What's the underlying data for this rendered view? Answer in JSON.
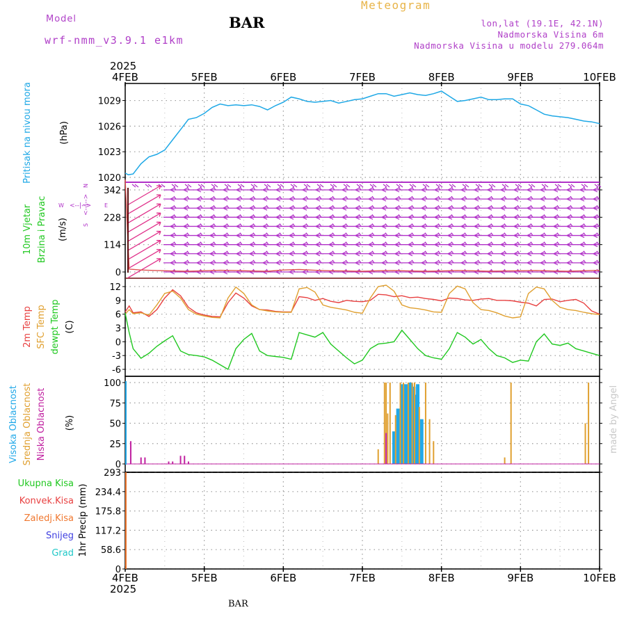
{
  "header": {
    "model_label": "Model",
    "model_name": "wrf-nmm_v3.9.1 e1km",
    "station": "BAR",
    "title": "Meteogram",
    "coords": "lon,lat (19.1E, 42.1N)",
    "elevation": "Nadmorska Visina 6m",
    "model_elevation": "Nadmorska Visina u modelu 279.064m"
  },
  "footer": {
    "station": "BAR",
    "credit": "made by Angel"
  },
  "time_axis": {
    "year": "2025",
    "labels": [
      "4FEB",
      "5FEB",
      "6FEB",
      "7FEB",
      "8FEB",
      "9FEB",
      "10FEB"
    ]
  },
  "colors": {
    "pressure": "#1ea8e6",
    "wind": "#b030c8",
    "wind_speed": "#e05050",
    "wind_arrow": "#e0308a",
    "temp2m": "#e84040",
    "sfc_temp": "#e0a030",
    "dewpt": "#20c820",
    "cloud_high": "#20a8e8",
    "cloud_mid": "#e0a030",
    "cloud_low": "#c020a0",
    "precip_total": "#20c820",
    "precip_conv": "#e84040",
    "precip_frz": "#f07830",
    "precip_snow": "#4040e0",
    "precip_hail": "#20c8c8"
  },
  "chart_data": [
    {
      "type": "line",
      "panel": "pressure",
      "ylabel_left": "Pritisak na nivou mora",
      "ylabel_unit": "(hPa)",
      "ylim": [
        1020,
        1031
      ],
      "yticks": [
        1020,
        1023,
        1026,
        1029
      ],
      "grid": true,
      "x_days": [
        0,
        0.04,
        0.1,
        0.2,
        0.3,
        0.4,
        0.5,
        0.6,
        0.7,
        0.8,
        0.9,
        1.0,
        1.1,
        1.2,
        1.3,
        1.4,
        1.5,
        1.6,
        1.7,
        1.8,
        1.9,
        2.0,
        2.1,
        2.2,
        2.3,
        2.4,
        2.5,
        2.6,
        2.7,
        2.8,
        2.9,
        3.0,
        3.1,
        3.2,
        3.3,
        3.4,
        3.5,
        3.6,
        3.7,
        3.8,
        3.9,
        4.0,
        4.1,
        4.2,
        4.3,
        4.4,
        4.5,
        4.6,
        4.7,
        4.8,
        4.9,
        5.0,
        5.1,
        5.2,
        5.3,
        5.4,
        5.5,
        5.6,
        5.7,
        5.8,
        5.9,
        6.0
      ],
      "series": [
        {
          "values": [
            1020.5,
            1020.3,
            1020.4,
            1021.6,
            1022.4,
            1022.7,
            1023.2,
            1024.4,
            1025.6,
            1026.8,
            1027.0,
            1027.5,
            1028.2,
            1028.6,
            1028.4,
            1028.5,
            1028.4,
            1028.5,
            1028.3,
            1027.9,
            1028.4,
            1028.8,
            1029.4,
            1029.2,
            1028.9,
            1028.8,
            1028.9,
            1029.0,
            1028.7,
            1028.9,
            1029.1,
            1029.2,
            1029.5,
            1029.8,
            1029.8,
            1029.5,
            1029.7,
            1029.9,
            1029.7,
            1029.6,
            1029.8,
            1030.1,
            1029.5,
            1028.9,
            1029.0,
            1029.2,
            1029.4,
            1029.1,
            1029.1,
            1029.2,
            1029.2,
            1028.6,
            1028.4,
            1027.9,
            1027.4,
            1027.2,
            1027.1,
            1027.0,
            1026.8,
            1026.6,
            1026.5,
            1026.3
          ]
        }
      ]
    },
    {
      "type": "line",
      "panel": "wind",
      "ylabel_left": "10m Vjetar",
      "ylabel_left2": "Brzina i Pravac",
      "ylabel_unit": "(m/s)",
      "compass_labels": [
        "W",
        "<--|-->",
        "E",
        "N",
        "<--|-->",
        "S"
      ],
      "yticks": [
        0,
        114,
        228,
        342
      ],
      "ylim": [
        -19,
        400
      ],
      "grid": true,
      "x_days": [
        0,
        0.05,
        0.2,
        0.4,
        0.6,
        0.8,
        1.0,
        1.2,
        1.4,
        1.6,
        1.8,
        2.0,
        2.2,
        2.4,
        2.6,
        2.8,
        3.0,
        3.2,
        3.4,
        3.6,
        3.8,
        4.0,
        4.2,
        4.4,
        4.6,
        4.8,
        5.0,
        5.2,
        5.4,
        5.6,
        5.8,
        6.0
      ],
      "series": [
        {
          "name": "speed",
          "values": [
            385,
            12,
            8,
            6,
            4,
            3,
            5,
            7,
            6,
            4,
            3,
            8,
            10,
            7,
            5,
            4,
            3,
            5,
            6,
            4,
            3,
            4,
            6,
            5,
            3,
            4,
            5,
            6,
            4,
            3,
            5,
            7
          ]
        }
      ],
      "barb_levels": [
        342,
        304,
        266,
        228,
        190,
        152,
        114,
        76,
        38,
        0
      ],
      "arrow_levels": [
        38,
        76,
        114,
        152,
        190,
        228,
        266,
        304,
        342
      ]
    },
    {
      "type": "line",
      "panel": "temperature",
      "ylabel_left": [
        "2m Temp",
        "SFC Temp",
        "dewpt Temp"
      ],
      "ylabel_unit": "(C)",
      "ylim": [
        -7,
        13
      ],
      "yticks": [
        -6,
        -3,
        0,
        3,
        6,
        9,
        12
      ],
      "grid": true,
      "x_days": [
        0,
        0.05,
        0.1,
        0.2,
        0.3,
        0.4,
        0.5,
        0.6,
        0.7,
        0.8,
        0.9,
        1.0,
        1.1,
        1.2,
        1.3,
        1.4,
        1.5,
        1.6,
        1.7,
        1.8,
        1.9,
        2.0,
        2.1,
        2.2,
        2.3,
        2.4,
        2.5,
        2.6,
        2.7,
        2.8,
        2.9,
        3.0,
        3.1,
        3.2,
        3.3,
        3.4,
        3.5,
        3.6,
        3.7,
        3.8,
        3.9,
        4.0,
        4.1,
        4.2,
        4.3,
        4.4,
        4.5,
        4.6,
        4.7,
        4.8,
        4.9,
        5.0,
        5.1,
        5.2,
        5.3,
        5.4,
        5.5,
        5.6,
        5.7,
        5.8,
        5.9,
        6.0
      ],
      "series": [
        {
          "name": "2m Temp",
          "values": [
            6.5,
            7.8,
            6.3,
            6.5,
            5.5,
            7.0,
            9.5,
            11.3,
            10.0,
            7.5,
            6.3,
            5.8,
            5.5,
            5.4,
            8.5,
            10.6,
            9.5,
            7.8,
            7.0,
            6.9,
            6.6,
            6.5,
            6.5,
            9.8,
            9.6,
            9.0,
            9.4,
            8.8,
            8.5,
            9.0,
            8.8,
            8.7,
            9.0,
            10.3,
            10.2,
            9.8,
            10.0,
            9.6,
            9.7,
            9.4,
            9.2,
            8.9,
            9.5,
            9.4,
            9.1,
            9.0,
            9.3,
            9.4,
            9.0,
            9.0,
            8.9,
            8.6,
            8.4,
            7.8,
            9.2,
            9.3,
            8.7,
            9.0,
            9.2,
            8.4,
            6.7,
            6.0
          ]
        },
        {
          "name": "SFC Temp",
          "values": [
            6.0,
            7.0,
            6.1,
            6.3,
            5.8,
            8.0,
            10.5,
            11.0,
            9.5,
            7.0,
            6.0,
            5.6,
            5.3,
            5.2,
            9.5,
            11.9,
            10.5,
            8.0,
            7.0,
            6.7,
            6.5,
            6.4,
            6.4,
            11.5,
            11.8,
            10.8,
            8.0,
            7.5,
            7.2,
            6.9,
            6.4,
            6.2,
            9.5,
            12.0,
            12.3,
            11.0,
            8.0,
            7.4,
            7.2,
            6.9,
            6.5,
            6.4,
            10.5,
            12.1,
            11.5,
            8.5,
            7.0,
            6.8,
            6.3,
            5.6,
            5.2,
            5.4,
            10.5,
            11.9,
            11.5,
            9.0,
            7.5,
            7.0,
            6.8,
            6.4,
            6.1,
            5.9
          ]
        },
        {
          "name": "dewpt Temp",
          "values": [
            6.2,
            2.0,
            -1.5,
            -3.6,
            -2.5,
            -1.0,
            0.2,
            1.3,
            -2.0,
            -2.8,
            -3.0,
            -3.3,
            -4.0,
            -5.0,
            -6.0,
            -1.5,
            0.5,
            1.8,
            -2.0,
            -3.0,
            -3.2,
            -3.4,
            -3.8,
            2.0,
            1.5,
            1.0,
            2.0,
            -0.5,
            -2.0,
            -3.5,
            -4.8,
            -4.0,
            -1.5,
            -0.5,
            -0.3,
            0.0,
            2.5,
            0.5,
            -1.5,
            -3.0,
            -3.5,
            -3.8,
            -1.5,
            2.0,
            1.0,
            -0.5,
            0.5,
            -1.5,
            -3.0,
            -3.5,
            -4.5,
            -4.0,
            -4.2,
            0.0,
            1.7,
            -0.5,
            -0.8,
            -0.3,
            -1.5,
            -2.0,
            -2.5,
            -3.0
          ]
        }
      ]
    },
    {
      "type": "bar",
      "panel": "cloud",
      "ylabel_left": [
        "Visoka Oblacnost",
        "Srednja Oblacnost",
        "Niska Oblacnost"
      ],
      "ylabel_unit": "(%)",
      "ylim": [
        0,
        100
      ],
      "yticks": [
        0,
        25,
        50,
        75,
        100
      ],
      "grid": true,
      "series": [
        {
          "name": "Visoka Oblacnost",
          "x_days": [
            3.4,
            3.45,
            3.5,
            3.55,
            3.6,
            3.62,
            3.65,
            3.68,
            3.7,
            3.75
          ],
          "values": [
            40,
            68,
            98,
            98,
            100,
            98,
            95,
            85,
            98,
            55
          ]
        },
        {
          "name": "Srednja Oblacnost",
          "x_days": [
            3.2,
            3.28,
            3.3,
            3.32,
            3.35,
            3.42,
            3.48,
            3.52,
            3.58,
            3.63,
            3.66,
            3.72,
            3.8,
            3.85,
            3.9,
            4.8,
            4.88,
            5.82,
            5.86
          ],
          "values": [
            18,
            100,
            100,
            62,
            100,
            60,
            100,
            100,
            100,
            100,
            100,
            70,
            100,
            55,
            28,
            8,
            100,
            50,
            100
          ]
        },
        {
          "name": "Niska Oblacnost",
          "x_days": [
            0.07,
            0.2,
            0.25,
            0.55,
            0.6,
            0.7,
            0.75,
            0.8,
            3.3
          ],
          "values": [
            28,
            8,
            8,
            3,
            3,
            10,
            10,
            3,
            38
          ]
        }
      ]
    },
    {
      "type": "bar",
      "panel": "precip",
      "ylabel_left": [
        "Ukupna  Kisa",
        "Konvek.Kisa",
        "Zaledj.Kisa",
        "Snijeg",
        "Grad"
      ],
      "ylabel_unit": "1hr Precip (mm)",
      "ylim": [
        0,
        293
      ],
      "yticks": [
        0,
        58.6,
        117.2,
        175.8,
        234.4,
        293
      ],
      "grid": true,
      "series": [
        {
          "name": "Konvek.Kisa",
          "x_days": [
            0.0
          ],
          "values": [
            293
          ]
        },
        {
          "name": "Zaledj.Kisa",
          "x_days": [
            0.0
          ],
          "values": [
            293
          ]
        }
      ]
    }
  ]
}
